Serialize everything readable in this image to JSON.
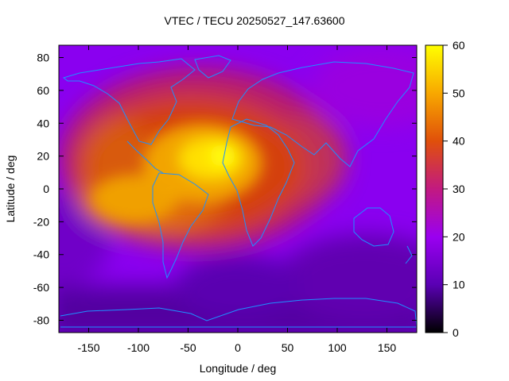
{
  "chart_data": {
    "type": "heatmap",
    "title": "VTEC / TECU 20250527_147.63600",
    "xlabel": "Longitude / deg",
    "ylabel": "Latitude / deg",
    "xlim": [
      -180,
      180
    ],
    "ylim": [
      -87.5,
      87.5
    ],
    "x_ticks": [
      -150,
      -100,
      -50,
      0,
      50,
      100,
      150
    ],
    "y_ticks": [
      -80,
      -60,
      -40,
      -20,
      0,
      20,
      40,
      60,
      80
    ],
    "colorbar": {
      "range": [
        0,
        60
      ],
      "ticks": [
        0,
        10,
        20,
        30,
        40,
        50,
        60
      ],
      "palette": [
        "#000000",
        "#5a00b4",
        "#9a00f0",
        "#c21a80",
        "#e0500a",
        "#f8a800",
        "#ffff00"
      ]
    },
    "grid": false,
    "overlay": "coastlines",
    "features": [
      {
        "description": "equatorial anomaly peak",
        "lon": -20,
        "lat": 15,
        "value": 60
      },
      {
        "description": "southern crest",
        "lon": -75,
        "lat": -15,
        "value": 45
      },
      {
        "description": "northern crest",
        "lon": -120,
        "lat": 15,
        "value": 40
      },
      {
        "description": "background minimum",
        "lon": 150,
        "lat": -75,
        "value": 8
      }
    ]
  }
}
